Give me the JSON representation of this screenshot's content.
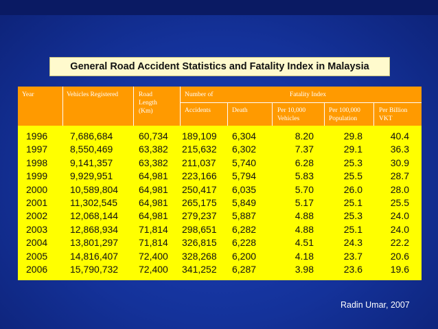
{
  "title": "General Road Accident Statistics and Fatality Index in Malaysia",
  "header": {
    "year": "Year",
    "vehicles": "Vehicles Registered",
    "road_length": "Road Length (Km)",
    "number_of": "Number of",
    "fatality_index": "Fatality Index",
    "accidents": "Accidents",
    "death": "Death",
    "per_10000": "Per 10,000 Vehicles",
    "per_100000": "Per 100,000 Population",
    "per_billion": "Per Billion VKT"
  },
  "rows": [
    {
      "year": "1996",
      "vehicles": "7,686,684",
      "road": "60,734",
      "accidents": "189,109",
      "death": "6,304",
      "p10k": "8.20",
      "p100k": "29.8",
      "pbn": "40.4"
    },
    {
      "year": "1997",
      "vehicles": "8,550,469",
      "road": "63,382",
      "accidents": "215,632",
      "death": "6,302",
      "p10k": "7.37",
      "p100k": "29.1",
      "pbn": "36.3"
    },
    {
      "year": "1998",
      "vehicles": "9,141,357",
      "road": "63,382",
      "accidents": "211,037",
      "death": "5,740",
      "p10k": "6.28",
      "p100k": "25.3",
      "pbn": "30.9"
    },
    {
      "year": "1999",
      "vehicles": "9,929,951",
      "road": "64,981",
      "accidents": "223,166",
      "death": "5,794",
      "p10k": "5.83",
      "p100k": "25.5",
      "pbn": "28.7"
    },
    {
      "year": "2000",
      "vehicles": "10,589,804",
      "road": "64,981",
      "accidents": "250,417",
      "death": "6,035",
      "p10k": "5.70",
      "p100k": "26.0",
      "pbn": "28.0"
    },
    {
      "year": "2001",
      "vehicles": "11,302,545",
      "road": "64,981",
      "accidents": "265,175",
      "death": "5,849",
      "p10k": "5.17",
      "p100k": "25.1",
      "pbn": "25.5"
    },
    {
      "year": "2002",
      "vehicles": "12,068,144",
      "road": "64,981",
      "accidents": "279,237",
      "death": "5,887",
      "p10k": "4.88",
      "p100k": "25.3",
      "pbn": "24.0"
    },
    {
      "year": "2003",
      "vehicles": "12,868,934",
      "road": "71,814",
      "accidents": "298,651",
      "death": "6,282",
      "p10k": "4.88",
      "p100k": "25.1",
      "pbn": "24.0"
    },
    {
      "year": "2004",
      "vehicles": "13,801,297",
      "road": "71,814",
      "accidents": "326,815",
      "death": "6,228",
      "p10k": "4.51",
      "p100k": "24.3",
      "pbn": "22.2"
    },
    {
      "year": "2005",
      "vehicles": "14,816,407",
      "road": "72,400",
      "accidents": "328,268",
      "death": "6,200",
      "p10k": "4.18",
      "p100k": "23.7",
      "pbn": "20.6"
    },
    {
      "year": "2006",
      "vehicles": "15,790,732",
      "road": "72,400",
      "accidents": "341,252",
      "death": "6,287",
      "p10k": "3.98",
      "p100k": "23.6",
      "pbn": "19.6"
    }
  ],
  "source": "Radin Umar, 2007"
}
